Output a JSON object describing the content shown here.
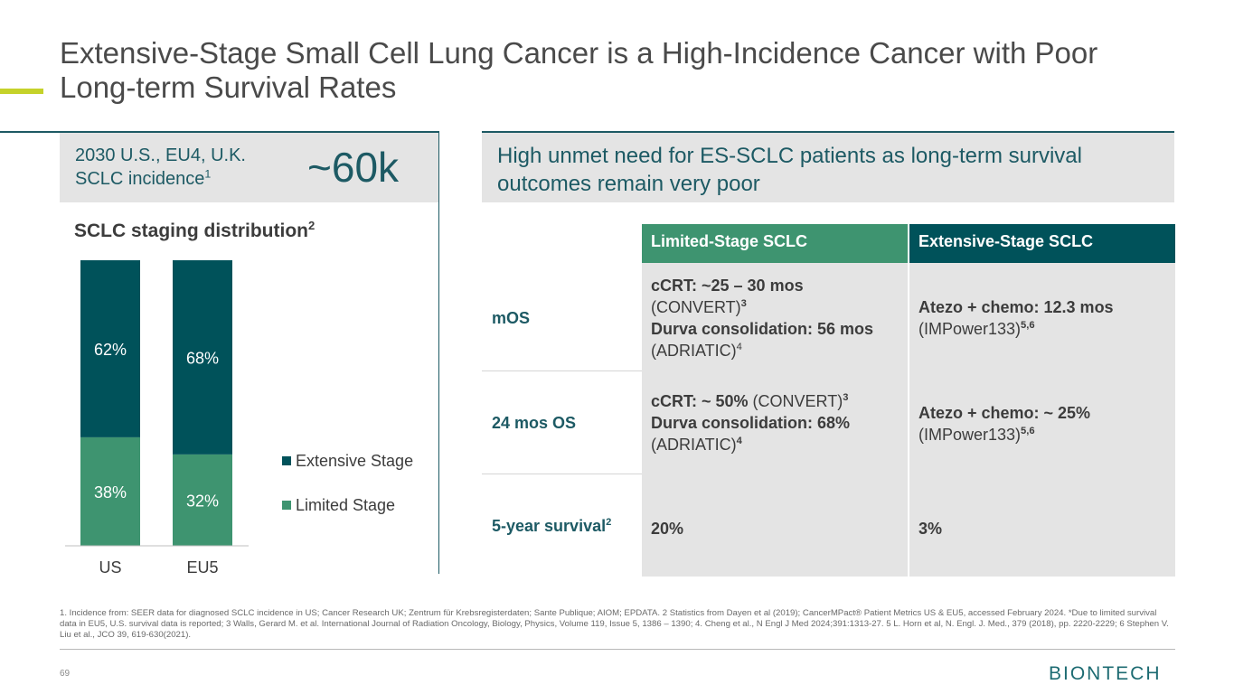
{
  "title": "Extensive-Stage Small Cell Lung Cancer is a High-Incidence Cancer with Poor Long-term Survival Rates",
  "incidence": {
    "label_line1": "2030 U.S., EU4, U.K.",
    "label_line2": "SCLC incidence",
    "label_sup": "1",
    "value": "~60k"
  },
  "staging": {
    "title": "SCLC staging distribution",
    "title_sup": "2"
  },
  "chart_data": {
    "type": "bar",
    "stacked": true,
    "title": "SCLC staging distribution",
    "categories": [
      "US",
      "EU5"
    ],
    "series": [
      {
        "name": "Limited Stage",
        "values": [
          38,
          32
        ],
        "labels": [
          "38%",
          "32%"
        ],
        "color": "#3e9470"
      },
      {
        "name": "Extensive Stage",
        "values": [
          62,
          68
        ],
        "labels": [
          "62%",
          "68%"
        ],
        "color": "#00525a"
      }
    ],
    "ylim": [
      0,
      100
    ],
    "legend": [
      "Extensive Stage",
      "Limited Stage"
    ],
    "legend_position": "right"
  },
  "unmet": {
    "text": "High unmet need for ES-SCLC patients as long-term survival outcomes remain very poor"
  },
  "table": {
    "headers": {
      "limited": "Limited-Stage SCLC",
      "extensive": "Extensive-Stage SCLC"
    },
    "header_colors": {
      "limited": "#3e9470",
      "extensive": "#00525a"
    },
    "rows": {
      "mos": {
        "label": "mOS",
        "limited": {
          "l1_bold": "cCRT: ~25 – 30 mos",
          "l2": "(CONVERT)",
          "l2_sup": "3",
          "l3_bold": "Durva consolidation: 56 mos",
          "l4": "(ADRIATIC)",
          "l4_sup": "4"
        },
        "extensive": {
          "l1_bold": "Atezo + chemo: 12.3 mos",
          "l2": "(IMPower133)",
          "l2_sup": "5,6"
        }
      },
      "os24": {
        "label": "24 mos OS",
        "limited": {
          "l1_bold": "cCRT: ~ 50%",
          "l1_rest": " (CONVERT)",
          "l1_sup": "3",
          "l2_bold": "Durva consolidation: 68%",
          "l3": "(ADRIATIC)",
          "l3_sup": "4"
        },
        "extensive": {
          "l1_bold": "Atezo + chemo: ~ 25%",
          "l2": "(IMPower133)",
          "l2_sup": "5,6"
        }
      },
      "five_year": {
        "label": "5-year survival",
        "label_sup": "2",
        "limited": "20%",
        "extensive": "3%"
      }
    }
  },
  "footnote": "1. Incidence from: SEER data for diagnosed SCLC incidence in US; Cancer Research UK; Zentrum für Krebsregisterdaten; Sante Publique; AIOM; EPDATA. 2 Statistics from Dayen et al (2019); CancerMPact® Patient Metrics US & EU5, accessed February 2024. *Due to limited survival data in EU5, U.S. survival data is reported; 3 Walls, Gerard M. et al. International Journal of Radiation Oncology, Biology, Physics, Volume 119, Issue 5, 1386 – 1390; 4. Cheng et al., N Engl J Med 2024;391:1313-27. 5 L. Horn et al, N. Engl. J. Med., 379 (2018), pp. 2220-2229; 6 Stephen V. Liu et al., JCO 39, 619-630(2021).",
  "page_number": "69",
  "logo": {
    "text": "BIONTECH",
    "color": "#1d6b72"
  },
  "colors": {
    "teal": "#1d5a64",
    "green": "#3e9470",
    "accent": "#c5d22a",
    "panel": "#e4e4e4"
  }
}
